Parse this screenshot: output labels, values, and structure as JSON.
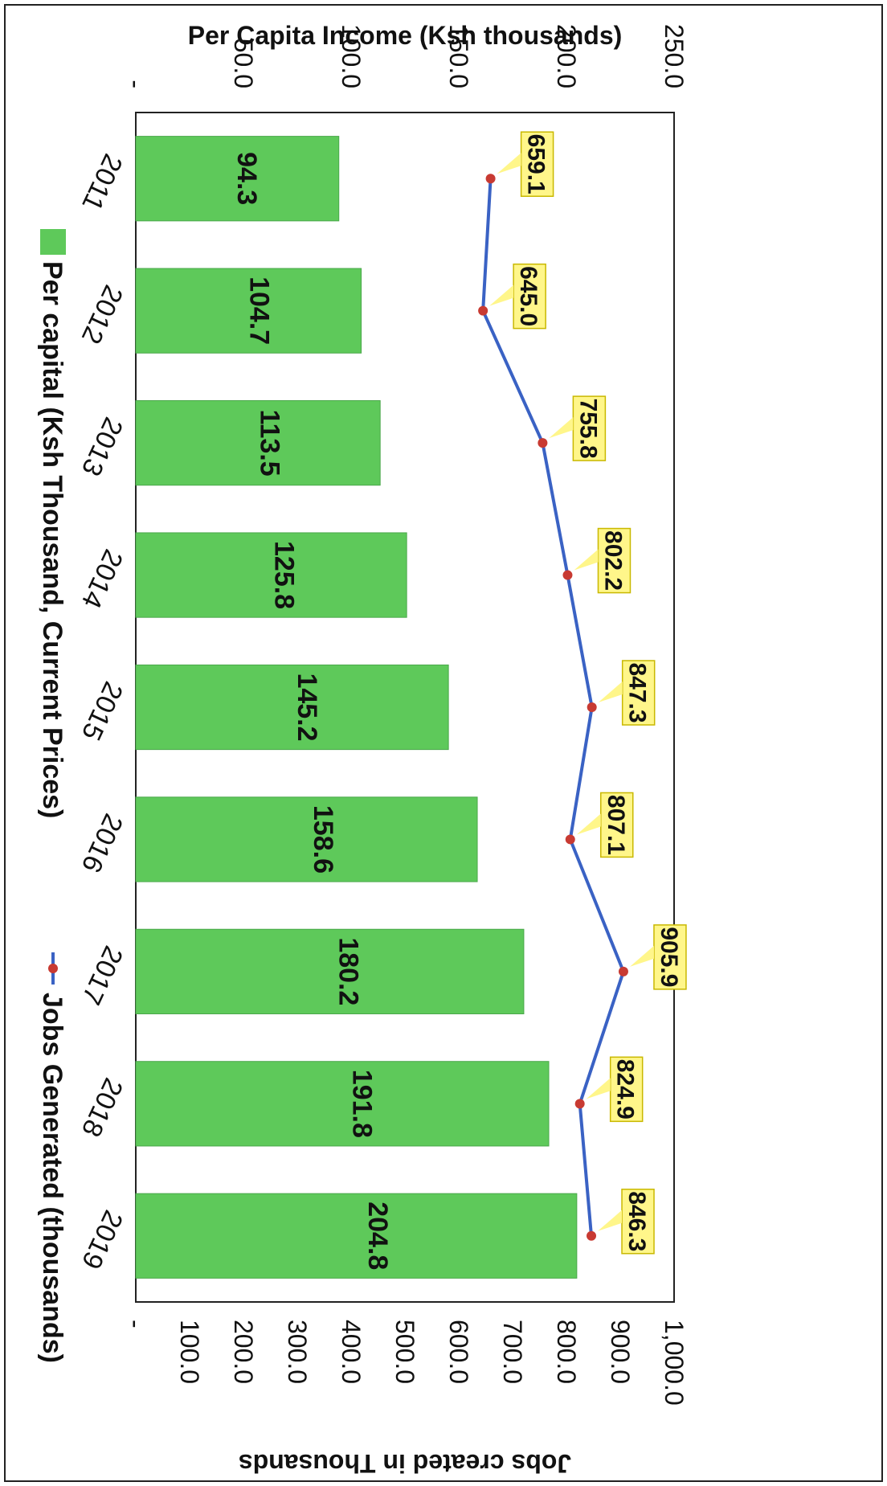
{
  "chart_data": {
    "type": "bar",
    "categories": [
      "2011",
      "2012",
      "2013",
      "2014",
      "2015",
      "2016",
      "2017",
      "2018",
      "2019"
    ],
    "series": [
      {
        "name": "Per capital (Ksh Thousand, Current Prices)",
        "kind": "bar",
        "axis": "left",
        "color": "#5ec95a",
        "values": [
          94.3,
          104.7,
          113.5,
          125.8,
          145.2,
          158.6,
          180.2,
          191.8,
          204.8
        ],
        "labels": [
          "94.3",
          "104.7",
          "113.5",
          "125.8",
          "145.2",
          "158.6",
          "180.2",
          "191.8",
          "204.8"
        ]
      },
      {
        "name": "Jobs Generated (thousands)",
        "kind": "line",
        "axis": "right",
        "color": "#3a62c4",
        "marker_color": "#c83a32",
        "values": [
          659.1,
          645.0,
          755.8,
          802.2,
          847.3,
          807.1,
          905.9,
          824.9,
          846.3
        ],
        "labels": [
          "659.1",
          "645.0",
          "755.8",
          "802.2",
          "847.3",
          "807.1",
          "905.9",
          "824.9",
          "846.3"
        ]
      }
    ],
    "ylabel": "Per Capita Income (Ksh thousands)",
    "y2label": "Jobs created in Thousands",
    "ylim": [
      0,
      250
    ],
    "y2lim": [
      0,
      1000
    ],
    "yticks": [
      "-",
      "50.0",
      "100.0",
      "150.0",
      "200.0",
      "250.0"
    ],
    "y2ticks": [
      "-",
      "100.0",
      "200.0",
      "300.0",
      "400.0",
      "500.0",
      "600.0",
      "700.0",
      "800.0",
      "900.0",
      "1,000.0"
    ],
    "label_box_color": "#fff68a",
    "legend_position": "bottom",
    "grid": false,
    "orientation": "rotated 90 degrees clockwise"
  }
}
